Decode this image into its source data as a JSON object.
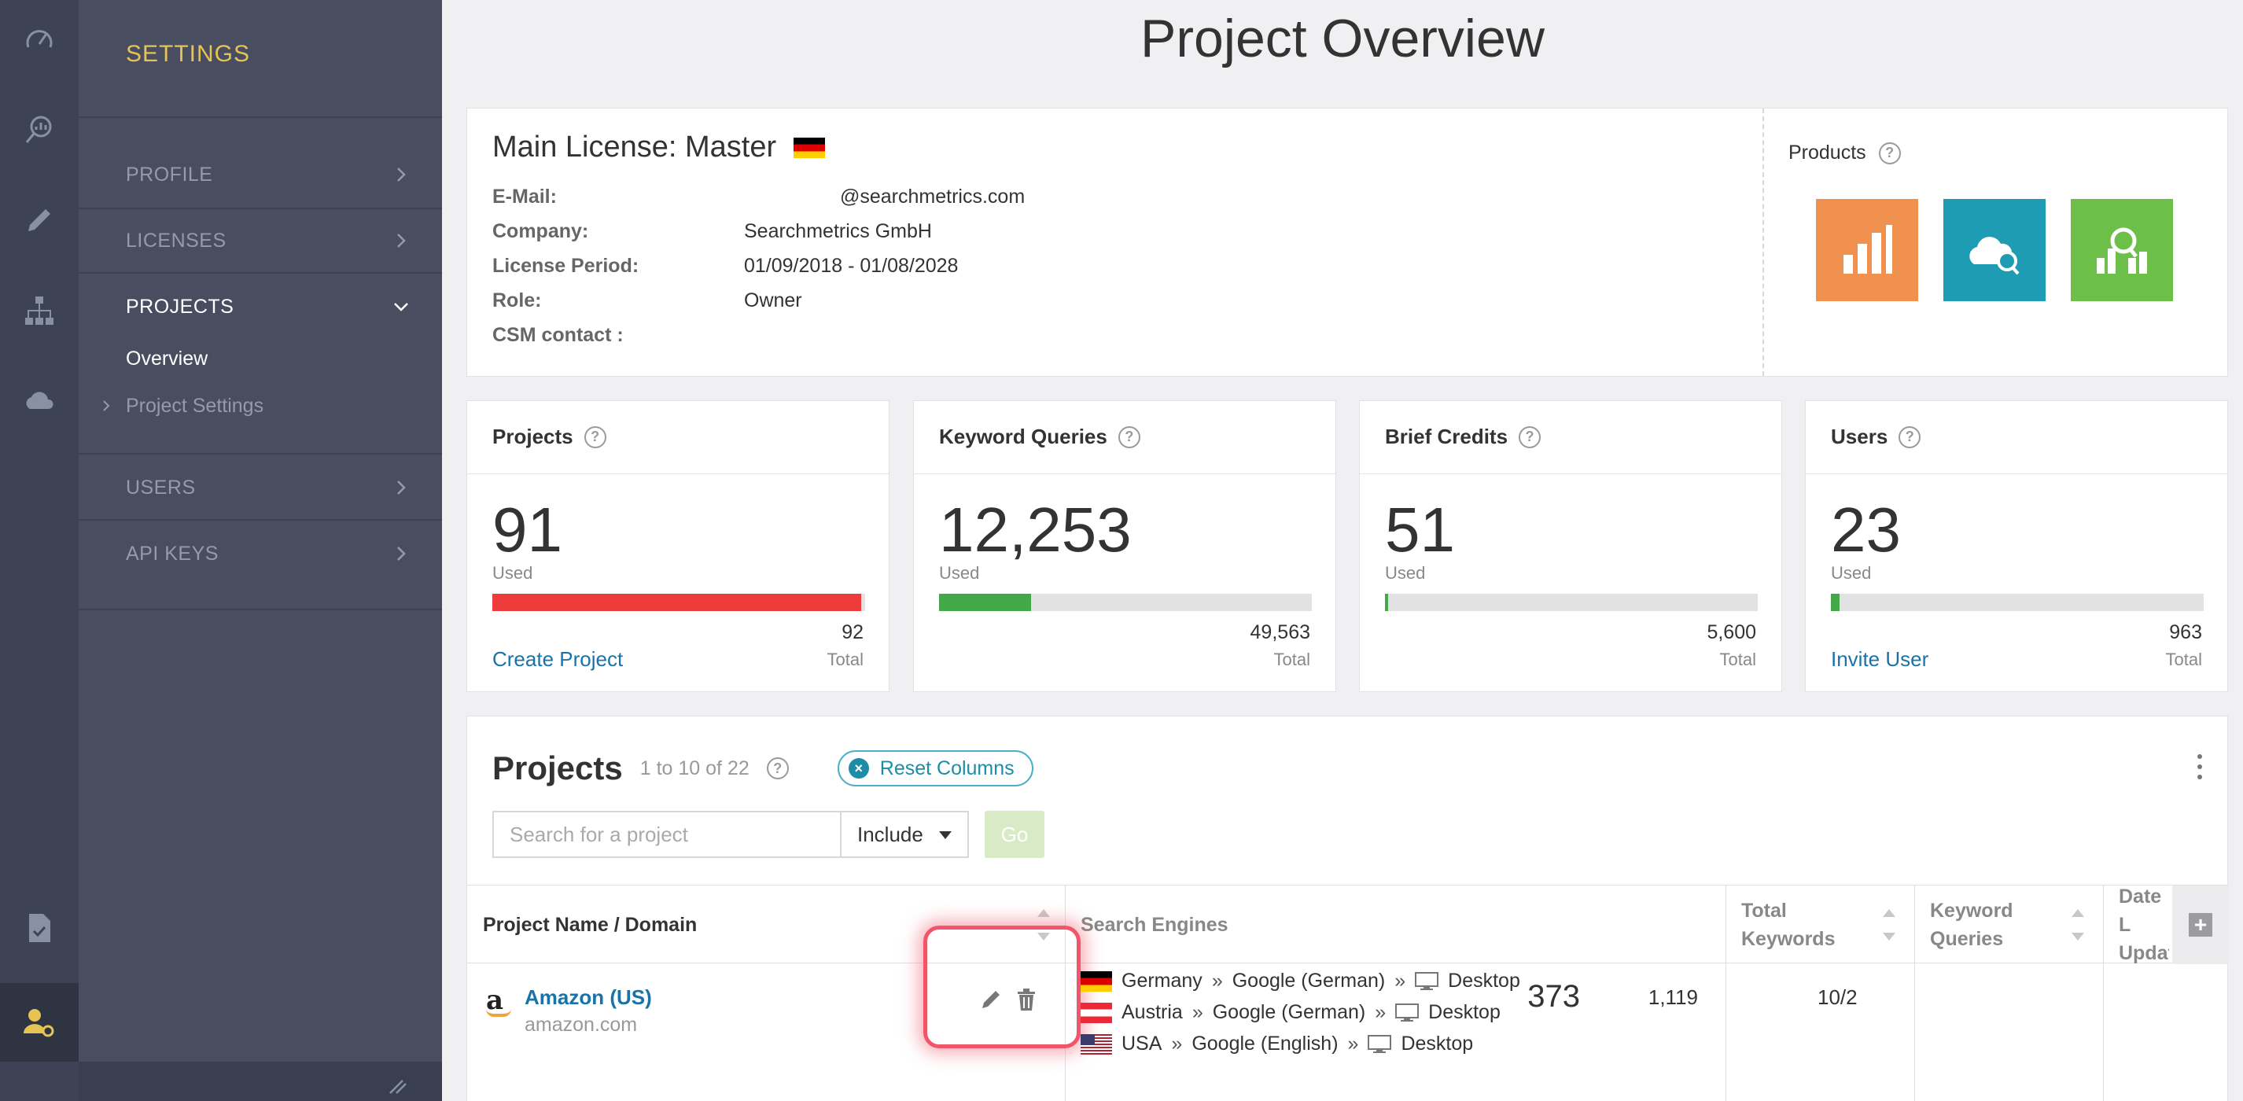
{
  "page": {
    "title": "Project Overview"
  },
  "rail": {
    "icons": [
      "dashboard-icon",
      "analytics-icon",
      "edit-icon",
      "structure-icon",
      "cloud-icon",
      "document-icon",
      "user-settings-icon"
    ]
  },
  "nav": {
    "title": "SETTINGS",
    "items": [
      {
        "label": "PROFILE"
      },
      {
        "label": "LICENSES"
      },
      {
        "label": "PROJECTS"
      },
      {
        "label": "USERS"
      },
      {
        "label": "API KEYS"
      }
    ],
    "sub": {
      "overview": "Overview",
      "project_settings": "Project Settings"
    }
  },
  "license": {
    "title": "Main License: Master",
    "rows": [
      {
        "key": "E-Mail:",
        "value": "@searchmetrics.com"
      },
      {
        "key": "Company:",
        "value": "Searchmetrics GmbH"
      },
      {
        "key": "License Period:",
        "value": "01/09/2018 - 01/08/2028"
      },
      {
        "key": "Role:",
        "value": "Owner"
      },
      {
        "key": "CSM contact :",
        "value": ""
      }
    ],
    "products_label": "Products",
    "product_tiles": [
      {
        "icon": "content-experience-icon",
        "color": "#f0914f"
      },
      {
        "icon": "cloud-search-icon",
        "color": "#1d9cb4"
      },
      {
        "icon": "research-analytics-icon",
        "color": "#6cc04a"
      }
    ]
  },
  "stats": [
    {
      "title": "Projects",
      "value": "91",
      "used_label": "Used",
      "total": "92",
      "total_label": "Total",
      "fill": 0.989,
      "fill_color": "#ee3b3b",
      "link": "Create Project"
    },
    {
      "title": "Keyword Queries",
      "value": "12,253",
      "used_label": "Used",
      "total": "49,563",
      "total_label": "Total",
      "fill": 0.247,
      "fill_color": "#43a84a",
      "link": ""
    },
    {
      "title": "Brief Credits",
      "value": "51",
      "used_label": "Used",
      "total": "5,600",
      "total_label": "Total",
      "fill": 0.009,
      "fill_color": "#43a84a",
      "link": ""
    },
    {
      "title": "Users",
      "value": "23",
      "used_label": "Used",
      "total": "963",
      "total_label": "Total",
      "fill": 0.024,
      "fill_color": "#43a84a",
      "link": "Invite User"
    }
  ],
  "projects": {
    "title": "Projects",
    "range": "1 to 10 of 22",
    "reset_label": "Reset Columns",
    "search_placeholder": "Search for a project",
    "include_label": "Include",
    "go_label": "Go",
    "columns": {
      "name": "Project Name / Domain",
      "engines": "Search Engines",
      "total_keywords": "Total Keywords",
      "keyword_queries": "Keyword Queries",
      "date": "Date L Updat"
    },
    "rows": [
      {
        "name": "Amazon (US)",
        "domain": "amazon.com",
        "engines": [
          {
            "flag": "de",
            "country": "Germany",
            "engine": "Google (German)",
            "device": "Desktop"
          },
          {
            "flag": "at",
            "country": "Austria",
            "engine": "Google (German)",
            "device": "Desktop"
          },
          {
            "flag": "us",
            "country": "USA",
            "engine": "Google (English)",
            "device": "Desktop"
          }
        ],
        "total_keywords": "373",
        "keyword_queries": "1,119",
        "date": "10/2"
      }
    ]
  },
  "colors": {
    "accent": "#1a73a8",
    "nav_title": "#e5c454",
    "highlight": "#f0566a"
  }
}
